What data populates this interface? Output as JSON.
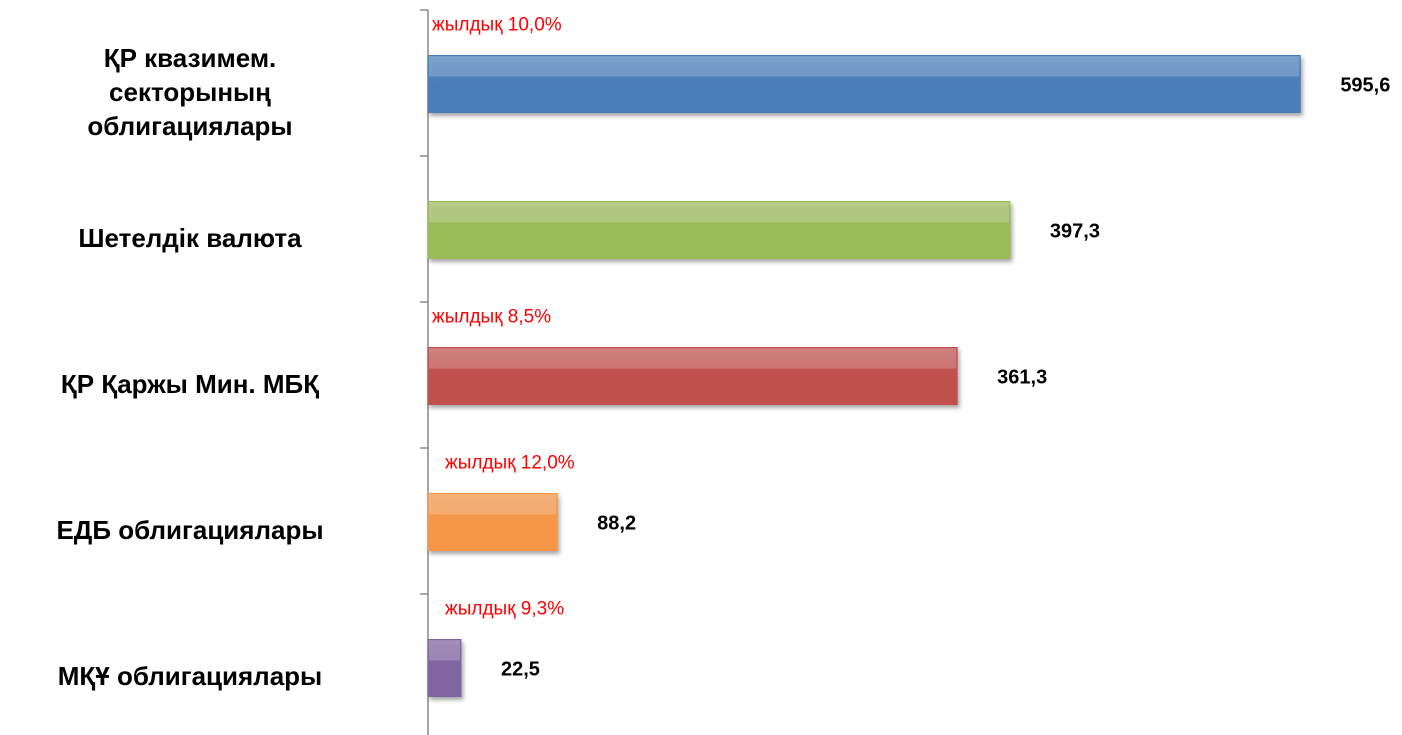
{
  "chart_data": {
    "type": "bar",
    "orientation": "horizontal",
    "categories": [
      "ҚР квазимем. секторының облигациялары",
      "Шетелдік валюта",
      "ҚР Қаржы Мин. МБҚ",
      "ЕДБ облигациялары",
      "МҚҰ облигациялары"
    ],
    "values": [
      595.6,
      397.3,
      361.3,
      88.2,
      22.5
    ],
    "value_labels": [
      "595,6",
      "397,3",
      "361,3",
      "88,2",
      "22,5"
    ],
    "annotations": [
      "жылдық 10,0%",
      null,
      "жылдық 8,5%",
      "жылдық 12,0%",
      "жылдық 9,3%"
    ],
    "colors": [
      "#4a7ebb",
      "#9bbb59",
      "#c0504d",
      "#f79646",
      "#8064a2"
    ],
    "xlim": [
      0,
      650
    ]
  }
}
